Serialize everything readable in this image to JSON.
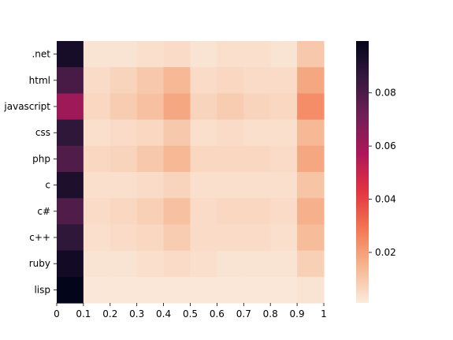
{
  "chart_data": {
    "type": "heatmap",
    "title": "",
    "xlabel": "",
    "ylabel": "",
    "rows": [
      ".net",
      "html",
      "javascript",
      "css",
      "php",
      "c",
      "c#",
      "c++",
      "ruby",
      "lisp"
    ],
    "x_ticks": [
      "0",
      "0.1",
      "0.2",
      "0.3",
      "0.4",
      "0.5",
      "0.6",
      "0.7",
      "0.8",
      "0.9",
      "1"
    ],
    "columns": 10,
    "values": [
      [
        0.094,
        0.003,
        0.003,
        0.004,
        0.005,
        0.003,
        0.004,
        0.004,
        0.003,
        0.01
      ],
      [
        0.081,
        0.005,
        0.007,
        0.01,
        0.014,
        0.005,
        0.006,
        0.005,
        0.005,
        0.018
      ],
      [
        0.061,
        0.006,
        0.009,
        0.012,
        0.018,
        0.007,
        0.009,
        0.007,
        0.006,
        0.024
      ],
      [
        0.087,
        0.004,
        0.005,
        0.006,
        0.01,
        0.004,
        0.005,
        0.004,
        0.004,
        0.014
      ],
      [
        0.079,
        0.006,
        0.007,
        0.01,
        0.014,
        0.006,
        0.006,
        0.006,
        0.005,
        0.018
      ],
      [
        0.092,
        0.004,
        0.004,
        0.005,
        0.007,
        0.004,
        0.004,
        0.004,
        0.004,
        0.011
      ],
      [
        0.079,
        0.005,
        0.006,
        0.008,
        0.012,
        0.005,
        0.006,
        0.006,
        0.005,
        0.016
      ],
      [
        0.087,
        0.004,
        0.005,
        0.006,
        0.009,
        0.005,
        0.005,
        0.005,
        0.004,
        0.013
      ],
      [
        0.095,
        0.003,
        0.003,
        0.004,
        0.005,
        0.004,
        0.003,
        0.003,
        0.003,
        0.008
      ],
      [
        0.1,
        0.002,
        0.002,
        0.002,
        0.002,
        0.002,
        0.002,
        0.002,
        0.002,
        0.003
      ]
    ],
    "colorbar": {
      "min": 0.001,
      "max": 0.0995,
      "ticks": [
        0.02,
        0.04,
        0.06,
        0.08
      ],
      "tick_labels": [
        "0.02",
        "0.04",
        "0.06",
        "0.08"
      ]
    },
    "colormap": "rocket_r",
    "colormap_stops": [
      "#faebdd",
      "#f6b48f",
      "#f37651",
      "#e13342",
      "#ad1759",
      "#701f57",
      "#35193e",
      "#03051a"
    ],
    "grid": false,
    "legend": "colorbar-right"
  }
}
